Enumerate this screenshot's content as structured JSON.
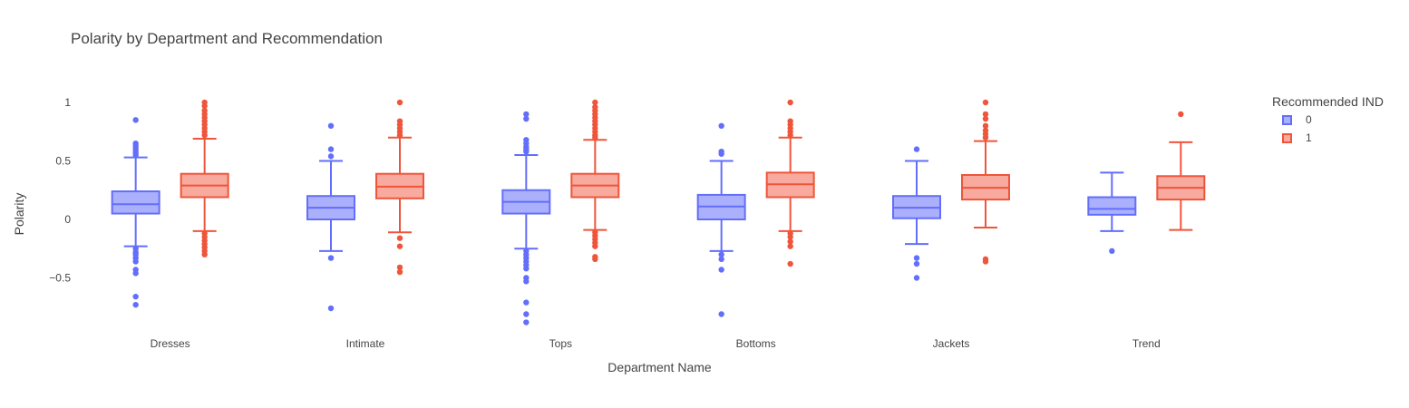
{
  "chart_data": {
    "type": "box",
    "title": "Polarity by Department and Recommendation",
    "xlabel": "Department Name",
    "ylabel": "Polarity",
    "categories": [
      "Dresses",
      "Intimate",
      "Tops",
      "Bottoms",
      "Jackets",
      "Trend"
    ],
    "ylim": [
      -0.95,
      1.12
    ],
    "yticks": [
      {
        "value": 1,
        "label": "1"
      },
      {
        "value": 0.5,
        "label": "0.5"
      },
      {
        "value": 0,
        "label": "0"
      },
      {
        "value": -0.5,
        "label": "−0.5"
      }
    ],
    "legend_title": "Recommended IND",
    "legend_position": "top-right",
    "grid": false,
    "series": [
      {
        "name": "0",
        "color": "#636efa",
        "fill": "#abb0fc",
        "boxes": [
          {
            "lowerfence": -0.23,
            "q1": 0.05,
            "median": 0.13,
            "q3": 0.24,
            "upperfence": 0.53,
            "outliers": [
              0.85,
              0.65,
              0.63,
              0.61,
              0.59,
              0.57,
              0.55,
              -0.25,
              -0.28,
              -0.3,
              -0.33,
              -0.36,
              -0.43,
              -0.46,
              -0.66,
              -0.73
            ]
          },
          {
            "lowerfence": -0.27,
            "q1": 0.0,
            "median": 0.1,
            "q3": 0.2,
            "upperfence": 0.5,
            "outliers": [
              0.8,
              0.6,
              0.54,
              -0.33,
              -0.76
            ]
          },
          {
            "lowerfence": -0.25,
            "q1": 0.05,
            "median": 0.15,
            "q3": 0.25,
            "upperfence": 0.55,
            "outliers": [
              0.9,
              0.86,
              0.68,
              0.65,
              0.62,
              0.6,
              0.58,
              -0.27,
              -0.3,
              -0.33,
              -0.36,
              -0.39,
              -0.42,
              -0.5,
              -0.53,
              -0.71,
              -0.81,
              -0.88
            ]
          },
          {
            "lowerfence": -0.27,
            "q1": 0.0,
            "median": 0.11,
            "q3": 0.21,
            "upperfence": 0.5,
            "outliers": [
              0.8,
              0.58,
              0.56,
              -0.3,
              -0.34,
              -0.43,
              -0.81
            ]
          },
          {
            "lowerfence": -0.21,
            "q1": 0.01,
            "median": 0.1,
            "q3": 0.2,
            "upperfence": 0.5,
            "outliers": [
              0.6,
              -0.33,
              -0.38,
              -0.5
            ]
          },
          {
            "lowerfence": -0.1,
            "q1": 0.04,
            "median": 0.09,
            "q3": 0.19,
            "upperfence": 0.4,
            "outliers": [
              -0.27
            ]
          }
        ]
      },
      {
        "name": "1",
        "color": "#ef553b",
        "fill": "#f7aa9d",
        "boxes": [
          {
            "lowerfence": -0.1,
            "q1": 0.19,
            "median": 0.29,
            "q3": 0.39,
            "upperfence": 0.69,
            "outliers": [
              1.0,
              0.97,
              0.93,
              0.9,
              0.87,
              0.84,
              0.81,
              0.78,
              0.75,
              0.72,
              -0.12,
              -0.15,
              -0.18,
              -0.21,
              -0.24,
              -0.27,
              -0.3
            ]
          },
          {
            "lowerfence": -0.11,
            "q1": 0.18,
            "median": 0.28,
            "q3": 0.39,
            "upperfence": 0.7,
            "outliers": [
              1.0,
              0.84,
              0.81,
              0.78,
              0.75,
              0.72,
              -0.16,
              -0.23,
              -0.41,
              -0.45
            ]
          },
          {
            "lowerfence": -0.09,
            "q1": 0.19,
            "median": 0.29,
            "q3": 0.39,
            "upperfence": 0.68,
            "outliers": [
              1.0,
              0.96,
              0.93,
              0.9,
              0.87,
              0.84,
              0.81,
              0.78,
              0.75,
              0.72,
              0.7,
              -0.11,
              -0.14,
              -0.17,
              -0.2,
              -0.23,
              -0.32,
              -0.34
            ]
          },
          {
            "lowerfence": -0.1,
            "q1": 0.19,
            "median": 0.3,
            "q3": 0.4,
            "upperfence": 0.7,
            "outliers": [
              1.0,
              0.84,
              0.81,
              0.78,
              0.75,
              0.72,
              -0.12,
              -0.15,
              -0.19,
              -0.23,
              -0.38
            ]
          },
          {
            "lowerfence": -0.07,
            "q1": 0.17,
            "median": 0.27,
            "q3": 0.38,
            "upperfence": 0.67,
            "outliers": [
              1.0,
              0.9,
              0.86,
              0.8,
              0.76,
              0.73,
              0.7,
              -0.34,
              -0.36
            ]
          },
          {
            "lowerfence": -0.09,
            "q1": 0.17,
            "median": 0.27,
            "q3": 0.37,
            "upperfence": 0.66,
            "outliers": [
              0.9
            ]
          }
        ]
      }
    ]
  }
}
